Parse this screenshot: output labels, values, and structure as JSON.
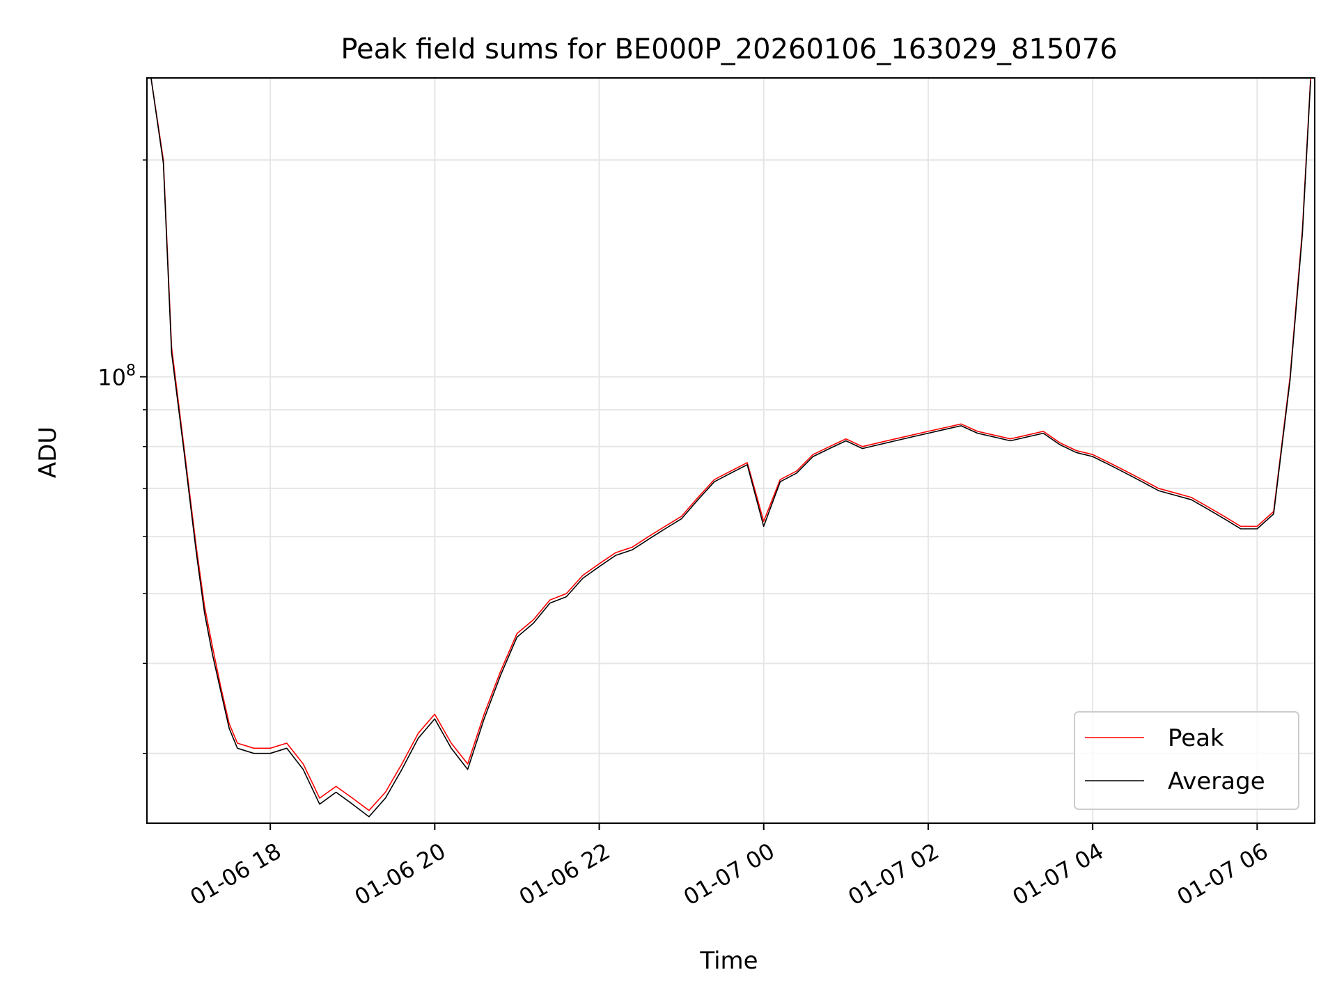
{
  "chart_data": {
    "type": "line",
    "title": "Peak field sums for BE000P_20260106_163029_815076",
    "xlabel": "Time",
    "ylabel": "ADU",
    "yscale": "log",
    "ylim": [
      24000000,
      260000000
    ],
    "xlim_hours": [
      16.5,
      30.7
    ],
    "x_unit": "hours since 2026-01-06 00:00",
    "x_ticks": [
      {
        "hour": 18,
        "label": "01-06 18"
      },
      {
        "hour": 20,
        "label": "01-06 20"
      },
      {
        "hour": 22,
        "label": "01-06 22"
      },
      {
        "hour": 24,
        "label": "01-07 00"
      },
      {
        "hour": 26,
        "label": "01-07 02"
      },
      {
        "hour": 28,
        "label": "01-07 04"
      },
      {
        "hour": 30,
        "label": "01-07 06"
      }
    ],
    "y_major_ticks": [
      {
        "value": 100000000,
        "label_base": "10",
        "label_exp": "8"
      }
    ],
    "y_minor_ticks": [
      30000000,
      40000000,
      50000000,
      60000000,
      70000000,
      80000000,
      90000000,
      200000000
    ],
    "grid": true,
    "legend_position": "bottom-right",
    "series": [
      {
        "name": "Peak",
        "color": "#ff0000",
        "x": [
          16.55,
          16.7,
          16.8,
          16.95,
          17.1,
          17.2,
          17.3,
          17.4,
          17.5,
          17.6,
          17.8,
          18.0,
          18.2,
          18.4,
          18.6,
          18.8,
          19.0,
          19.2,
          19.4,
          19.6,
          19.8,
          20.0,
          20.2,
          20.4,
          20.6,
          20.8,
          21.0,
          21.2,
          21.4,
          21.6,
          21.8,
          22.0,
          22.2,
          22.4,
          22.6,
          22.8,
          23.0,
          23.2,
          23.4,
          23.6,
          23.8,
          24.0,
          24.2,
          24.4,
          24.6,
          24.8,
          25.0,
          25.2,
          25.4,
          25.6,
          25.8,
          26.0,
          26.2,
          26.4,
          26.6,
          26.8,
          27.0,
          27.2,
          27.4,
          27.6,
          27.8,
          28.0,
          28.2,
          28.4,
          28.6,
          28.8,
          29.0,
          29.2,
          29.4,
          29.6,
          29.8,
          30.0,
          30.2,
          30.4,
          30.55,
          30.65
        ],
        "y": [
          260000000,
          200000000,
          110000000,
          80000000,
          58000000,
          48000000,
          42000000,
          37000000,
          33000000,
          31000000,
          30500000,
          30500000,
          31000000,
          29000000,
          26000000,
          27000000,
          26000000,
          25000000,
          26500000,
          29000000,
          32000000,
          34000000,
          31000000,
          29000000,
          34000000,
          39000000,
          44000000,
          46000000,
          49000000,
          50000000,
          53000000,
          55000000,
          57000000,
          58000000,
          60000000,
          62000000,
          64000000,
          68000000,
          72000000,
          74000000,
          76000000,
          63000000,
          72000000,
          74000000,
          78000000,
          80000000,
          82000000,
          80000000,
          81000000,
          82000000,
          83000000,
          84000000,
          85000000,
          86000000,
          84000000,
          83000000,
          82000000,
          83000000,
          84000000,
          81000000,
          79000000,
          78000000,
          76000000,
          74000000,
          72000000,
          70000000,
          69000000,
          68000000,
          66000000,
          64000000,
          62000000,
          62000000,
          65000000,
          100000000,
          160000000,
          260000000
        ]
      },
      {
        "name": "Average",
        "color": "#000000",
        "x": [
          16.55,
          16.7,
          16.8,
          16.95,
          17.1,
          17.2,
          17.3,
          17.4,
          17.5,
          17.6,
          17.8,
          18.0,
          18.2,
          18.4,
          18.6,
          18.8,
          19.0,
          19.2,
          19.4,
          19.6,
          19.8,
          20.0,
          20.2,
          20.4,
          20.6,
          20.8,
          21.0,
          21.2,
          21.4,
          21.6,
          21.8,
          22.0,
          22.2,
          22.4,
          22.6,
          22.8,
          23.0,
          23.2,
          23.4,
          23.6,
          23.8,
          24.0,
          24.2,
          24.4,
          24.6,
          24.8,
          25.0,
          25.2,
          25.4,
          25.6,
          25.8,
          26.0,
          26.2,
          26.4,
          26.6,
          26.8,
          27.0,
          27.2,
          27.4,
          27.6,
          27.8,
          28.0,
          28.2,
          28.4,
          28.6,
          28.8,
          29.0,
          29.2,
          29.4,
          29.6,
          29.8,
          30.0,
          30.2,
          30.4,
          30.55,
          30.65
        ],
        "y": [
          260000000,
          198000000,
          108000000,
          79000000,
          57000000,
          47000000,
          41000000,
          36500000,
          32500000,
          30500000,
          30000000,
          30000000,
          30500000,
          28500000,
          25500000,
          26500000,
          25500000,
          24500000,
          26000000,
          28500000,
          31500000,
          33500000,
          30500000,
          28500000,
          33500000,
          38500000,
          43500000,
          45500000,
          48500000,
          49500000,
          52500000,
          54500000,
          56500000,
          57500000,
          59500000,
          61500000,
          63500000,
          67500000,
          71500000,
          73500000,
          75500000,
          62000000,
          71500000,
          73500000,
          77500000,
          79500000,
          81500000,
          79500000,
          80500000,
          81500000,
          82500000,
          83500000,
          84500000,
          85500000,
          83500000,
          82500000,
          81500000,
          82500000,
          83500000,
          80500000,
          78500000,
          77500000,
          75500000,
          73500000,
          71500000,
          69500000,
          68500000,
          67500000,
          65500000,
          63500000,
          61500000,
          61500000,
          64500000,
          99000000,
          158000000,
          258000000
        ]
      }
    ]
  }
}
